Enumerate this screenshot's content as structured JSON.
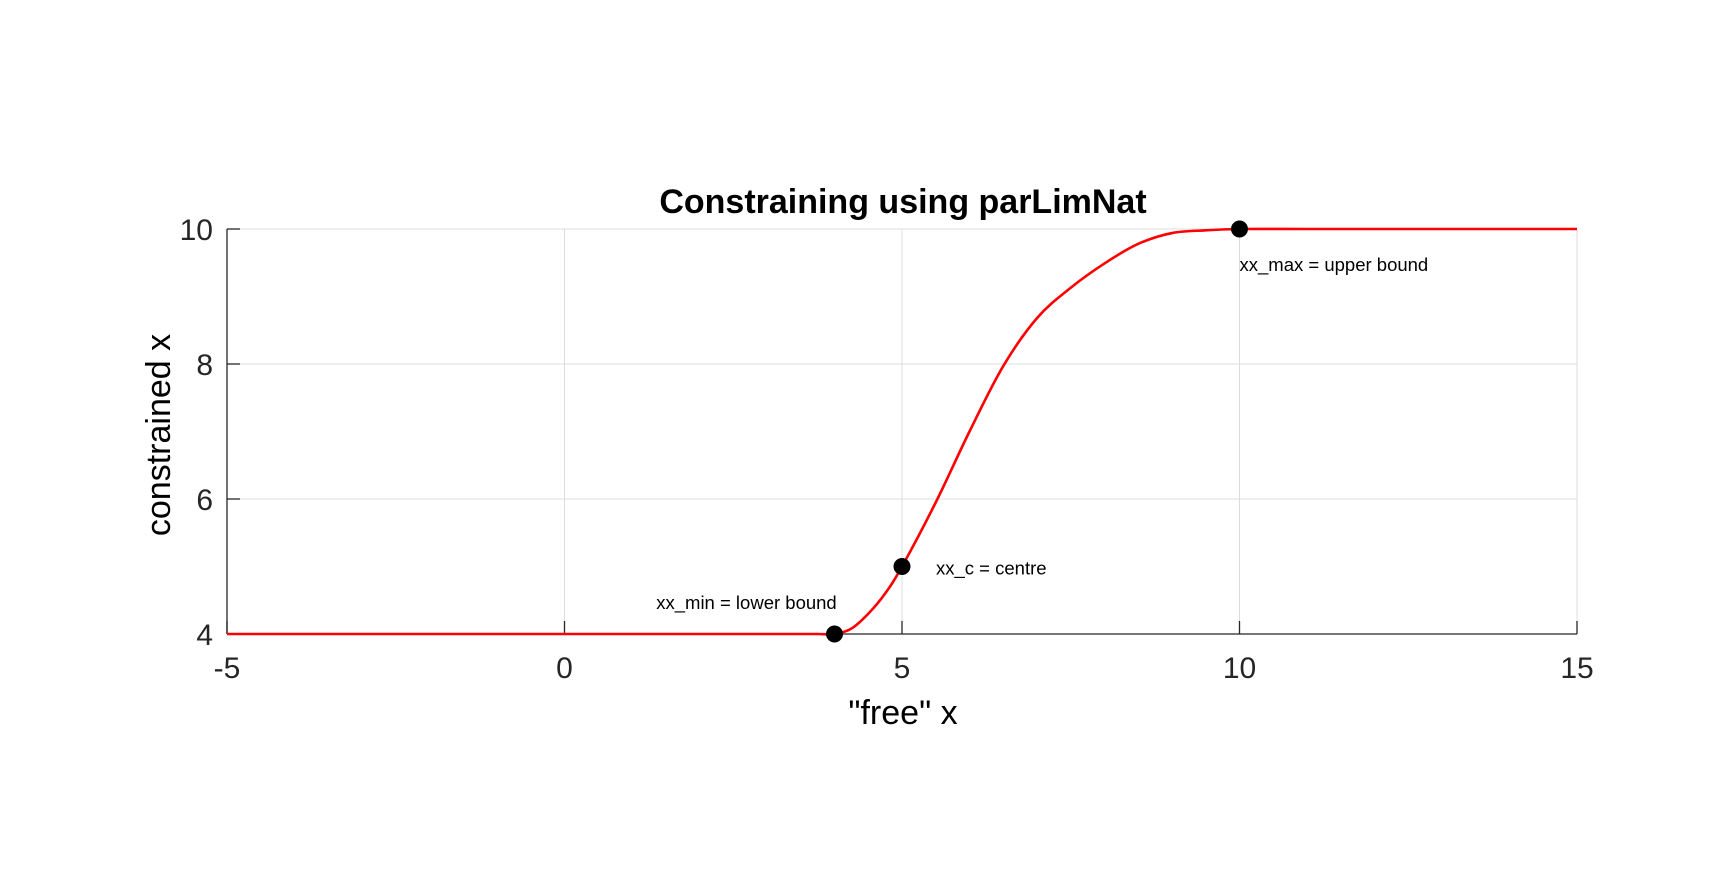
{
  "chart_data": {
    "type": "line",
    "title": "Constraining using parLimNat",
    "xlabel": "\"free\" x",
    "ylabel": "constrained x",
    "xlim": [
      -5,
      15
    ],
    "ylim": [
      4,
      10
    ],
    "xticks": [
      -5,
      0,
      5,
      10,
      15
    ],
    "xtick_labels": [
      "-5",
      "0",
      "5",
      "10",
      "15"
    ],
    "yticks": [
      4,
      6,
      8,
      10
    ],
    "ytick_labels": [
      "4",
      "6",
      "8",
      "10"
    ],
    "grid": true,
    "series": [
      {
        "color": "#ff0000",
        "x": [
          -5,
          0,
          3,
          3.5,
          3.75,
          4,
          4.25,
          4.5,
          4.75,
          5,
          5.5,
          6,
          6.5,
          7,
          7.5,
          8,
          8.5,
          9,
          9.5,
          10,
          11,
          12,
          13,
          15
        ],
        "y": [
          4,
          4,
          4,
          4,
          4,
          4,
          4.08,
          4.3,
          4.6,
          5,
          5.95,
          7.0,
          7.97,
          8.68,
          9.13,
          9.49,
          9.78,
          9.94,
          9.98,
          10,
          10,
          10,
          10,
          10
        ]
      }
    ],
    "points": [
      {
        "x": 4,
        "y": 4,
        "label": "xx_min = lower bound",
        "label_pos": "above-left"
      },
      {
        "x": 5,
        "y": 5,
        "label": "xx_c = centre",
        "label_pos": "right"
      },
      {
        "x": 10,
        "y": 10,
        "label": "xx_max = upper bound",
        "label_pos": "below-right"
      }
    ],
    "marker_color": "#000000"
  }
}
